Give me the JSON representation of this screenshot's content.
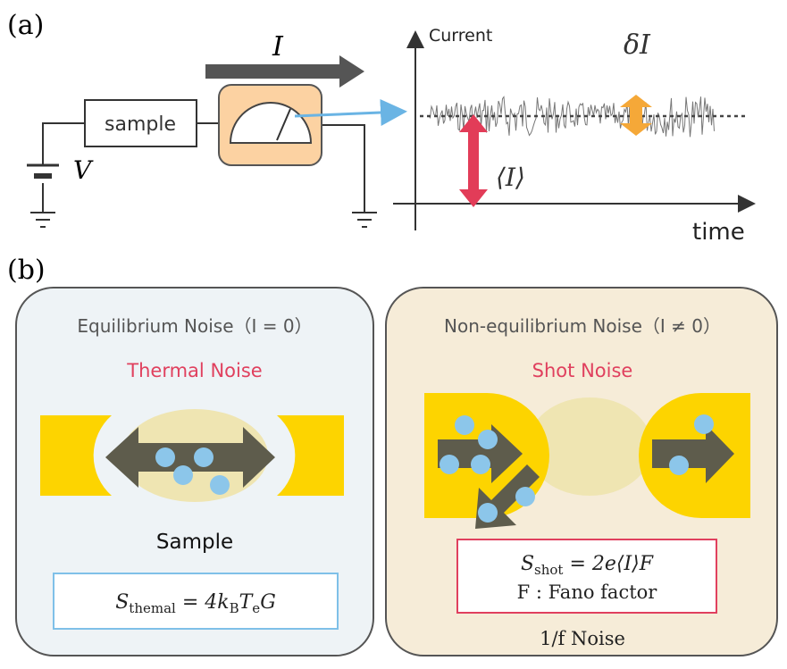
{
  "panel_a": {
    "label": "(a)",
    "current_symbol": "I",
    "sample": "sample",
    "voltage": "V",
    "y_axis": "Current",
    "fluctuation": "δI",
    "mean": "⟨I⟩",
    "x_axis": "time"
  },
  "panel_b": {
    "label": "(b)",
    "equilibrium": {
      "title": "Equilibrium Noise（I = 0）",
      "noise": "Thermal Noise",
      "sample": "Sample",
      "formula": [
        "S",
        "themal",
        " = 4k",
        "B",
        "T",
        "e",
        "G"
      ]
    },
    "nonequilibrium": {
      "title": "Non-equilibrium Noise（I ≠ 0）",
      "noise": "Shot Noise",
      "formula": [
        "S",
        "shot",
        " = 2e⟨I⟩F"
      ],
      "fano": "F : Fano factor",
      "other": "1/f Noise"
    }
  }
}
